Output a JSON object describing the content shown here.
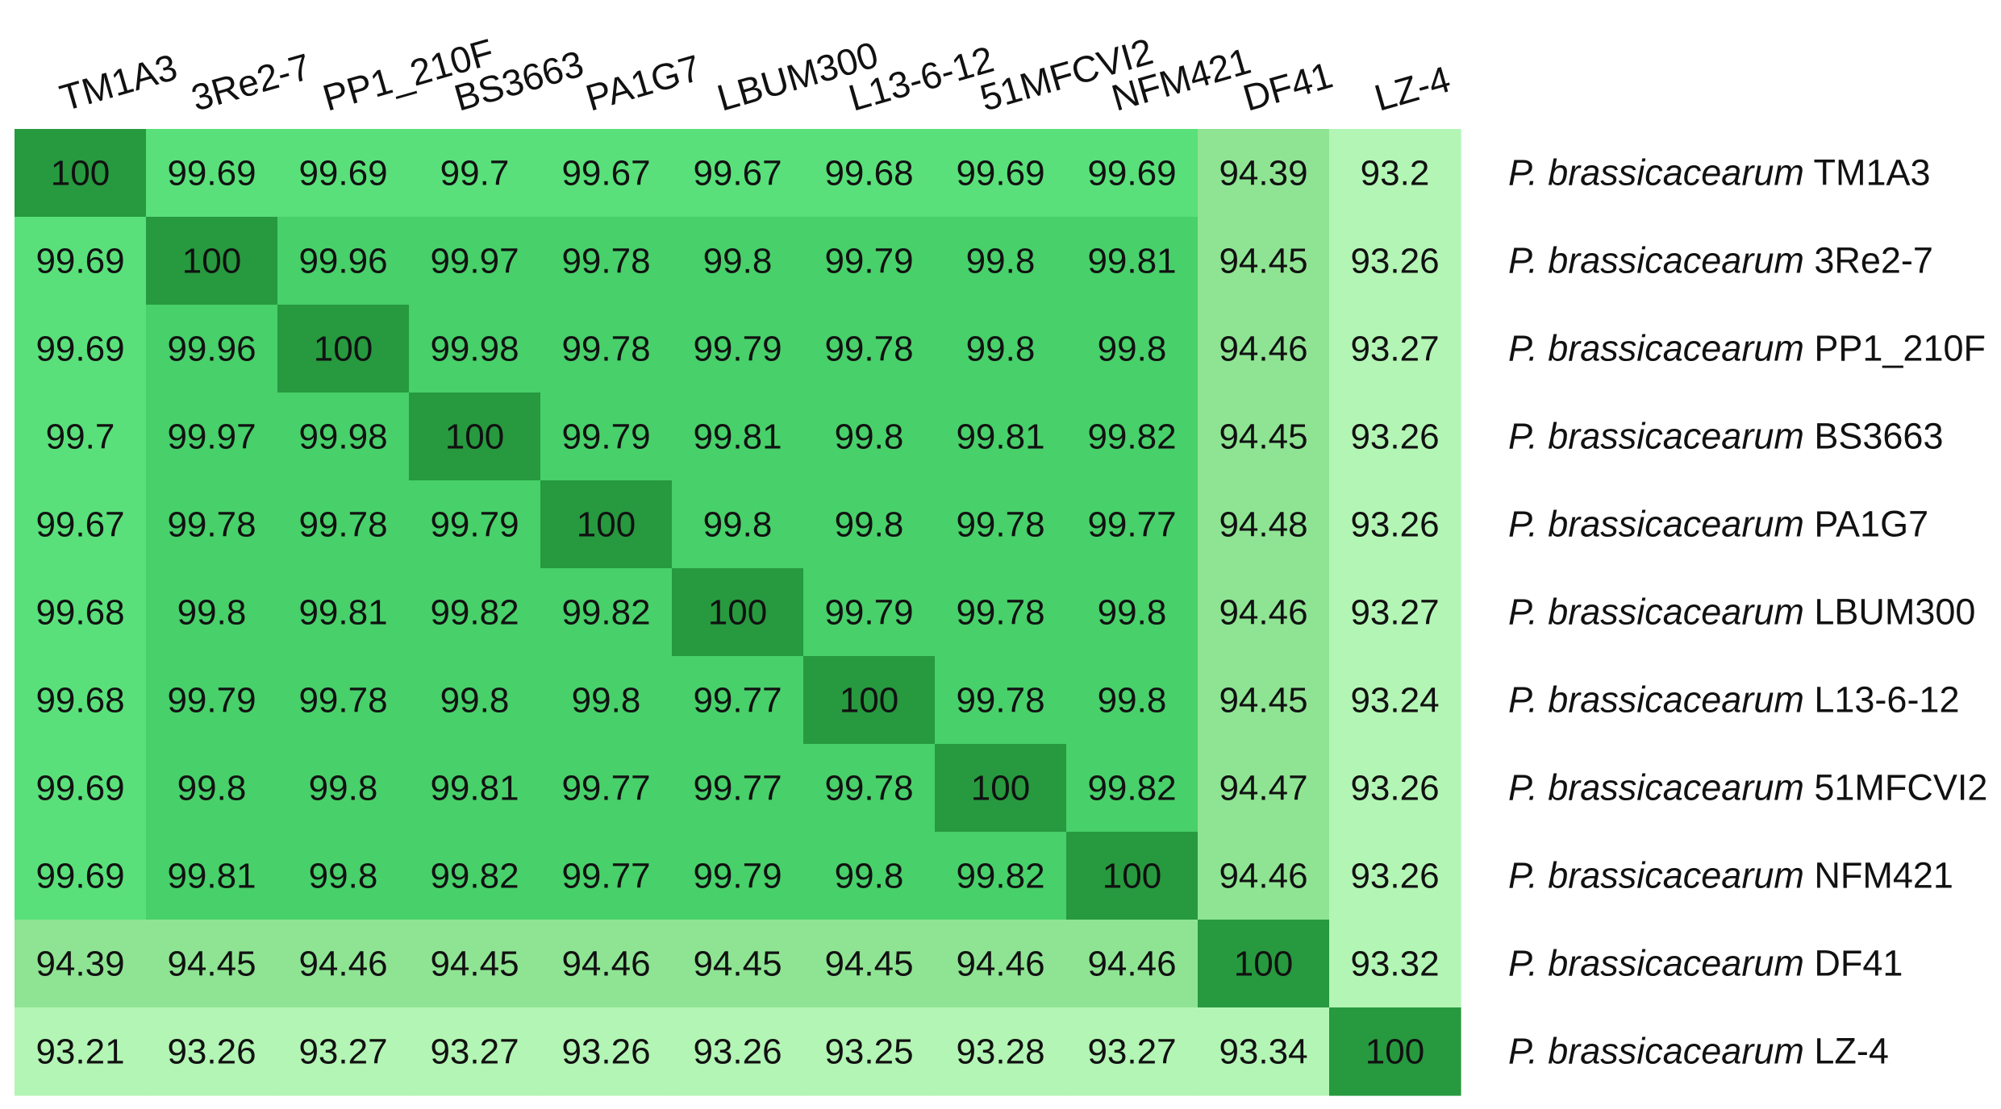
{
  "chart_data": {
    "type": "heatmap",
    "columns": [
      "TM1A3",
      "3Re2-7",
      "PP1_210F",
      "BS3663",
      "PA1G7",
      "LBUM300",
      "L13-6-12",
      "51MFCVI2",
      "NFM421",
      "DF41",
      "LZ-4"
    ],
    "rows": [
      {
        "genus": "P. brassicacearum",
        "strain": "TM1A3"
      },
      {
        "genus": "P. brassicacearum",
        "strain": "3Re2-7"
      },
      {
        "genus": "P. brassicacearum",
        "strain": "PP1_210F"
      },
      {
        "genus": "P. brassicacearum",
        "strain": "BS3663"
      },
      {
        "genus": "P. brassicacearum",
        "strain": "PA1G7"
      },
      {
        "genus": "P. brassicacearum",
        "strain": "LBUM300"
      },
      {
        "genus": "P. brassicacearum",
        "strain": "L13-6-12"
      },
      {
        "genus": "P. brassicacearum",
        "strain": "51MFCVI2"
      },
      {
        "genus": "P. brassicacearum",
        "strain": "NFM421"
      },
      {
        "genus": "P. brassicacearum",
        "strain": "DF41"
      },
      {
        "genus": "P. brassicacearum",
        "strain": "LZ-4"
      }
    ],
    "values": [
      [
        "100",
        "99.69",
        "99.69",
        "99.7",
        "99.67",
        "99.67",
        "99.68",
        "99.69",
        "99.69",
        "94.39",
        "93.2"
      ],
      [
        "99.69",
        "100",
        "99.96",
        "99.97",
        "99.78",
        "99.8",
        "99.79",
        "99.8",
        "99.81",
        "94.45",
        "93.26"
      ],
      [
        "99.69",
        "99.96",
        "100",
        "99.98",
        "99.78",
        "99.79",
        "99.78",
        "99.8",
        "99.8",
        "94.46",
        "93.27"
      ],
      [
        "99.7",
        "99.97",
        "99.98",
        "100",
        "99.79",
        "99.81",
        "99.8",
        "99.81",
        "99.82",
        "94.45",
        "93.26"
      ],
      [
        "99.67",
        "99.78",
        "99.78",
        "99.79",
        "100",
        "99.8",
        "99.8",
        "99.78",
        "99.77",
        "94.48",
        "93.26"
      ],
      [
        "99.68",
        "99.8",
        "99.81",
        "99.82",
        "99.82",
        "100",
        "99.79",
        "99.78",
        "99.8",
        "94.46",
        "93.27"
      ],
      [
        "99.68",
        "99.79",
        "99.78",
        "99.8",
        "99.8",
        "99.77",
        "100",
        "99.78",
        "99.8",
        "94.45",
        "93.24"
      ],
      [
        "99.69",
        "99.8",
        "99.8",
        "99.81",
        "99.77",
        "99.77",
        "99.78",
        "100",
        "99.82",
        "94.47",
        "93.26"
      ],
      [
        "99.69",
        "99.81",
        "99.8",
        "99.82",
        "99.77",
        "99.79",
        "99.8",
        "99.82",
        "100",
        "94.46",
        "93.26"
      ],
      [
        "94.39",
        "94.45",
        "94.46",
        "94.45",
        "94.46",
        "94.45",
        "94.45",
        "94.46",
        "94.46",
        "100",
        "93.32"
      ],
      [
        "93.21",
        "93.26",
        "93.27",
        "93.27",
        "93.26",
        "93.26",
        "93.25",
        "93.28",
        "93.27",
        "93.34",
        "100"
      ]
    ],
    "colors": {
      "diagonal": "#27993f",
      "core_block": "#48d06a",
      "first_strain": "#59e07a",
      "df41_band": "#8fe493",
      "lz4_band": "#b3f5b4",
      "text": "#111111"
    },
    "legend": "none",
    "grid": false
  }
}
